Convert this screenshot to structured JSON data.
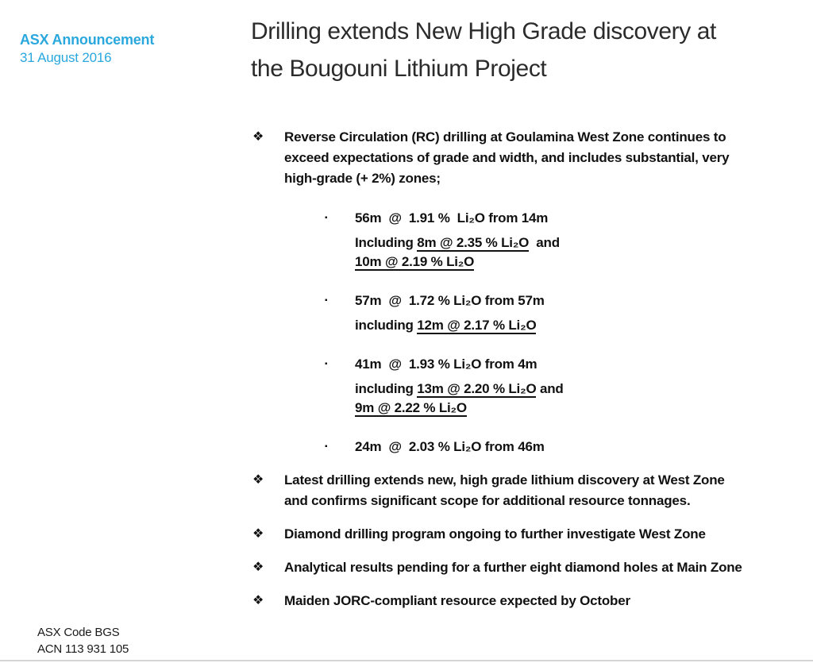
{
  "page": {
    "background_color": "#ffffff",
    "accent_color": "#2aa8de",
    "text_color": "#111111",
    "title_color": "#2b2b2b",
    "divider_color": "#d5d5d5"
  },
  "icons": {
    "bullet": "❖",
    "sub_bullet": "▪"
  },
  "header": {
    "announcement_label": "ASX Announcement",
    "date": "31 August 2016",
    "title_line1": "Drilling extends New High Grade discovery at",
    "title_line2": "the Bougouni Lithium Project"
  },
  "bullets": [
    {
      "text": "Reverse Circulation (RC) drilling at Goulamina West Zone continues to exceed expectations of grade and width, and includes substantial, very high-grade (+ 2%) zones;",
      "sub_items": [
        {
          "headline": "56m  @  1.91 %  Li₂O from 14m",
          "detail": [
            {
              "text": "Including ",
              "underline": false
            },
            {
              "text": "8m @ 2.35 % Li₂O",
              "underline": true
            },
            {
              "text": "  and",
              "underline": false
            },
            {
              "br": true
            },
            {
              "text": "10m @ 2.19 % Li₂O",
              "underline": true
            }
          ]
        },
        {
          "headline": "57m  @  1.72 % Li₂O from 57m",
          "detail": [
            {
              "text": "including ",
              "underline": false
            },
            {
              "text": "12m @ 2.17 % Li₂O",
              "underline": true
            }
          ]
        },
        {
          "headline": "41m  @  1.93 % Li₂O from 4m",
          "detail": [
            {
              "text": "including ",
              "underline": false
            },
            {
              "text": "13m @ 2.20 % Li₂O",
              "underline": true
            },
            {
              "text": " and",
              "underline": false
            },
            {
              "br": true
            },
            {
              "text": "9m @ 2.22 % Li₂O",
              "underline": true
            }
          ]
        },
        {
          "headline": "24m  @  2.03 % Li₂O from 46m",
          "detail": []
        }
      ]
    },
    {
      "text": "Latest drilling extends new, high grade lithium discovery at West Zone and confirms significant scope for additional resource tonnages."
    },
    {
      "text": "Diamond drilling program ongoing to further investigate West Zone"
    },
    {
      "text": "Analytical results pending for a further eight diamond holes at Main Zone"
    },
    {
      "text": "Maiden JORC-compliant resource expected by October"
    }
  ],
  "footer": {
    "asx_code": "ASX Code BGS",
    "acn": "ACN 113 931 105"
  }
}
